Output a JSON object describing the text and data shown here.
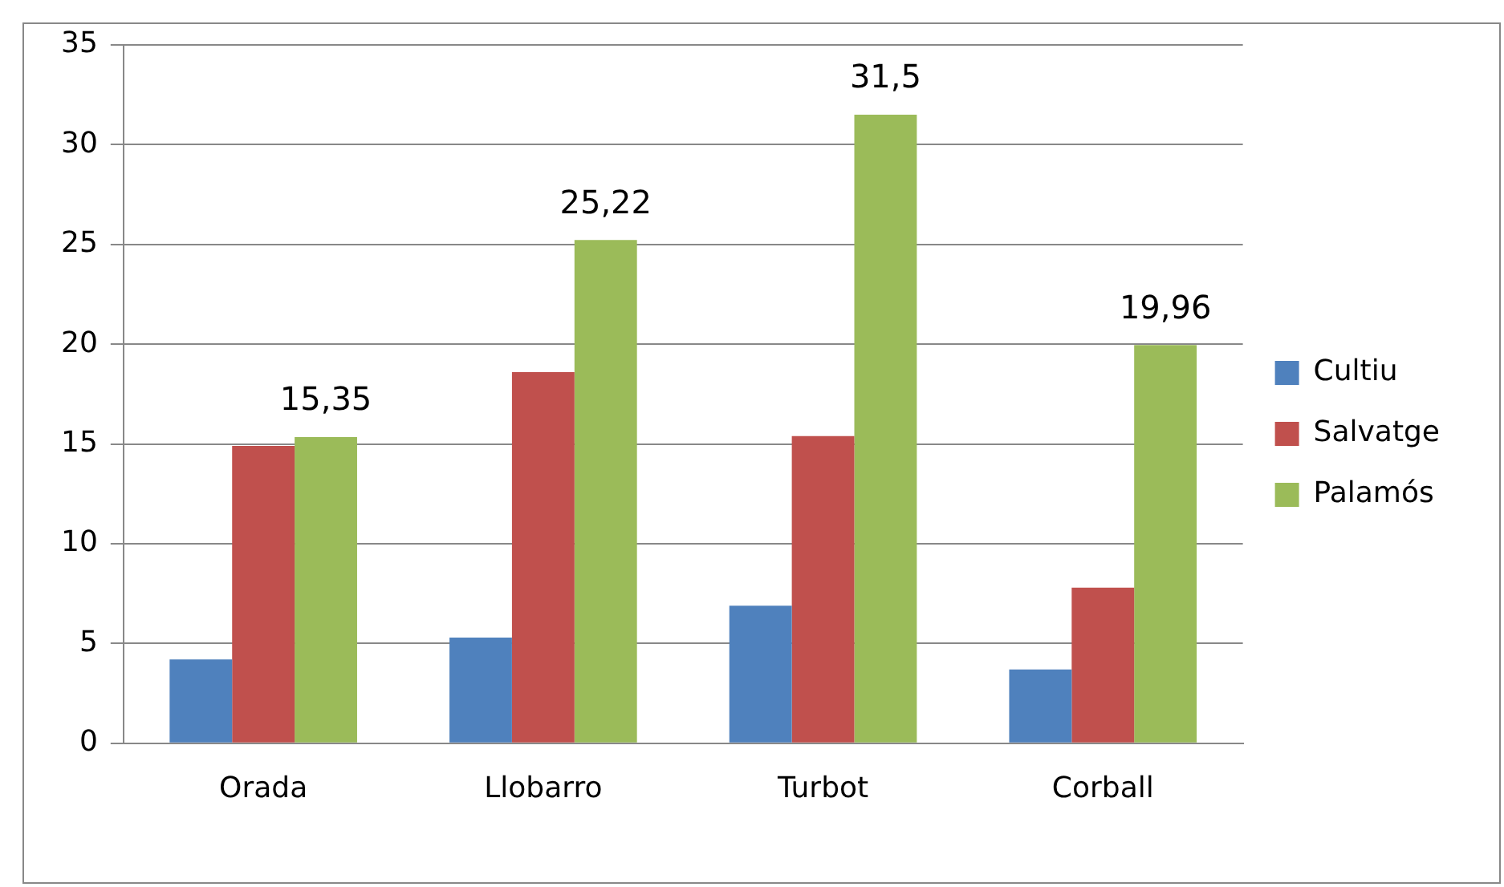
{
  "chart_data": {
    "type": "bar",
    "categories": [
      "Orada",
      "Llobarro",
      "Turbot",
      "Corball"
    ],
    "series": [
      {
        "name": "Cultiu",
        "color": "#4f81bd",
        "values": [
          4.2,
          5.3,
          6.9,
          3.7
        ]
      },
      {
        "name": "Salvatge",
        "color": "#c0504d",
        "values": [
          14.9,
          18.6,
          15.4,
          7.8
        ]
      },
      {
        "name": "Palamós",
        "color": "#9bbb59",
        "values": [
          15.35,
          25.22,
          31.5,
          19.96
        ],
        "value_labels": [
          "15,35",
          "25,22",
          "31,5",
          "19,96"
        ]
      }
    ],
    "ylim": [
      0,
      35
    ],
    "yticks": [
      0,
      5,
      10,
      15,
      20,
      25,
      30,
      35
    ],
    "grid": "y",
    "legend": "right"
  }
}
